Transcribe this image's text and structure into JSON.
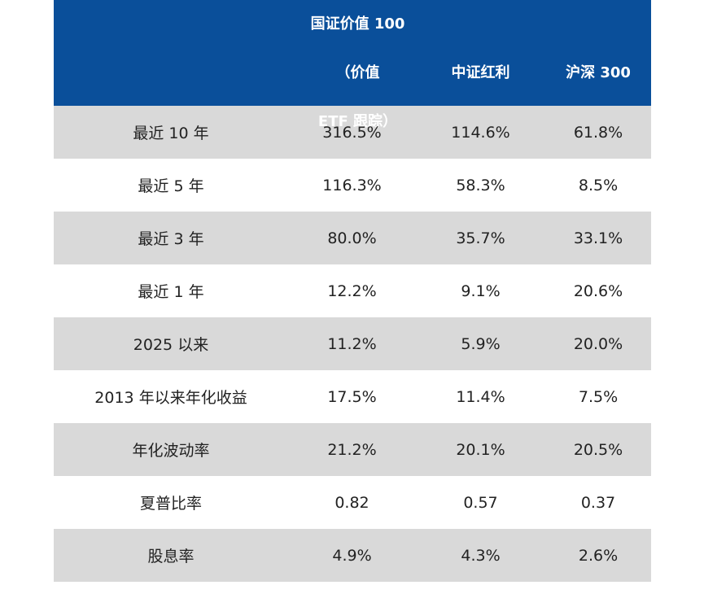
{
  "table": {
    "headers": [
      "",
      "国证价值 100（价值 ETF 跟踪）",
      "中证红利",
      "沪深 300"
    ],
    "header_lines": [
      "国证价值 100（价值",
      "ETF 跟踪）"
    ],
    "rows": [
      {
        "label": "最近 10 年",
        "v1": "316.5%",
        "v2": "114.6%",
        "v3": "61.8%"
      },
      {
        "label": "最近 5 年",
        "v1": "116.3%",
        "v2": "58.3%",
        "v3": "8.5%"
      },
      {
        "label": "最近 3 年",
        "v1": "80.0%",
        "v2": "35.7%",
        "v3": "33.1%"
      },
      {
        "label": "最近 1 年",
        "v1": "12.2%",
        "v2": "9.1%",
        "v3": "20.6%"
      },
      {
        "label": "2025 以来",
        "v1": "11.2%",
        "v2": "5.9%",
        "v3": "20.0%"
      },
      {
        "label": "2013 年以来年化收益",
        "v1": "17.5%",
        "v2": "11.4%",
        "v3": "7.5%"
      },
      {
        "label": "年化波动率",
        "v1": "21.2%",
        "v2": "20.1%",
        "v3": "20.5%"
      },
      {
        "label": "夏普比率",
        "v1": "0.82",
        "v2": "0.57",
        "v3": "0.37"
      },
      {
        "label": "股息率",
        "v1": "4.9%",
        "v2": "4.3%",
        "v3": "2.6%"
      }
    ]
  },
  "colors": {
    "header_bg": "#0a4f9a",
    "shade_bg": "#d9d9d9",
    "text": "#222222"
  }
}
